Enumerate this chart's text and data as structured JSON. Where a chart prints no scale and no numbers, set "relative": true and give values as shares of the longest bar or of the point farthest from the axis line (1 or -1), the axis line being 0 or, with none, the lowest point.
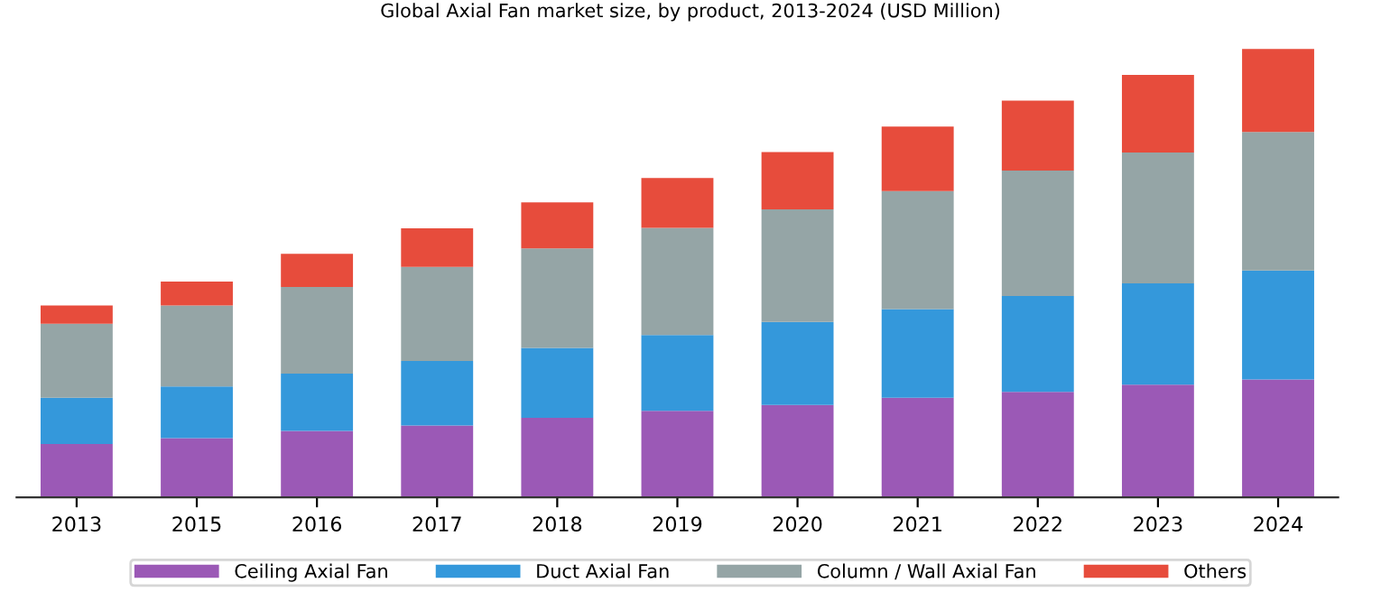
{
  "chart_data": {
    "type": "bar",
    "title": "Global Axial Fan market size, by product, 2013-2024 (USD Million)",
    "categories": [
      "2013",
      "2015",
      "2016",
      "2017",
      "2018",
      "2019",
      "2020",
      "2021",
      "2022",
      "2023",
      "2024"
    ],
    "relative": true,
    "stacked": true,
    "legend": "bottom",
    "grid": false,
    "series": [
      {
        "name": "Ceiling Axial Fan",
        "color": "#9b59b6",
        "values": [
          0.119,
          0.132,
          0.148,
          0.16,
          0.177,
          0.193,
          0.206,
          0.222,
          0.235,
          0.251,
          0.263
        ]
      },
      {
        "name": "Duct Axial Fan",
        "color": "#3498db",
        "values": [
          0.103,
          0.115,
          0.128,
          0.144,
          0.156,
          0.169,
          0.185,
          0.198,
          0.214,
          0.226,
          0.243
        ]
      },
      {
        "name": "Column / Wall Axial Fan",
        "color": "#95a5a6",
        "values": [
          0.165,
          0.181,
          0.193,
          0.21,
          0.222,
          0.239,
          0.251,
          0.263,
          0.28,
          0.292,
          0.309
        ]
      },
      {
        "name": "Others",
        "color": "#e74c3c",
        "values": [
          0.041,
          0.053,
          0.074,
          0.086,
          0.103,
          0.111,
          0.128,
          0.144,
          0.156,
          0.173,
          0.185
        ]
      }
    ]
  }
}
